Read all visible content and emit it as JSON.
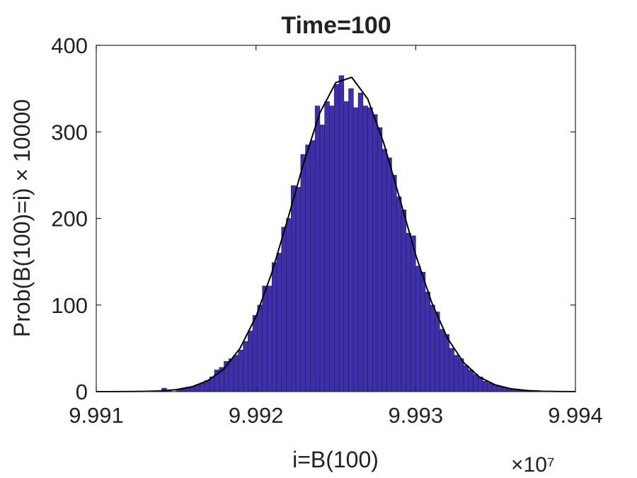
{
  "chart_data": {
    "type": "histogram",
    "title": "Time=100",
    "xlabel": "i=B(100)",
    "ylabel": "Prob(B(100)=i) × 10000",
    "x_multiplier": "×10⁷",
    "bins": [
      9.99141,
      9.99144,
      9.99147,
      9.9915,
      9.99153,
      9.99156,
      9.99159,
      9.99162,
      9.99165,
      9.99168,
      9.99171,
      9.99174,
      9.99177,
      9.9918,
      9.99183,
      9.99186,
      9.99189,
      9.99192,
      9.99195,
      9.99198,
      9.99201,
      9.99204,
      9.99207,
      9.9921,
      9.99213,
      9.99216,
      9.99219,
      9.99222,
      9.99225,
      9.99228,
      9.99231,
      9.99234,
      9.99237,
      9.9924,
      9.99243,
      9.99246,
      9.99249,
      9.99252,
      9.99255,
      9.99258,
      9.99261,
      9.99264,
      9.99267,
      9.9927,
      9.99273,
      9.99276,
      9.99279,
      9.99282,
      9.99285,
      9.99288,
      9.99291,
      9.99294,
      9.99297,
      9.993,
      9.99303,
      9.99306,
      9.99309,
      9.99312,
      9.99315,
      9.99318,
      9.99321,
      9.99324,
      9.99327,
      9.9933,
      9.99333,
      9.99336,
      9.99339,
      9.99342,
      9.99345,
      9.99348,
      9.99351,
      9.99354,
      9.99357,
      9.9936,
      9.99363,
      9.99366,
      9.99369,
      9.99372
    ],
    "values": [
      4,
      1,
      0,
      2,
      3,
      5,
      6,
      8,
      10,
      13,
      17,
      25,
      28,
      35,
      38,
      42,
      48,
      58,
      70,
      88,
      100,
      122,
      122,
      149,
      160,
      190,
      200,
      238,
      236,
      274,
      285,
      290,
      330,
      308,
      335,
      330,
      355,
      365,
      335,
      350,
      328,
      345,
      330,
      328,
      320,
      305,
      280,
      270,
      250,
      225,
      210,
      183,
      180,
      145,
      138,
      115,
      100,
      92,
      72,
      66,
      50,
      42,
      38,
      30,
      25,
      20,
      17,
      12,
      10,
      8,
      6,
      5,
      3,
      2,
      2,
      1,
      1
    ],
    "color": "#3f30a8",
    "edgecolor": "#231a6e",
    "curve": {
      "x": [
        9.991,
        9.9911,
        9.9912,
        9.9913,
        9.9914,
        9.9915,
        9.9916,
        9.9917,
        9.9918,
        9.9919,
        9.992,
        9.9921,
        9.9922,
        9.9923,
        9.9924,
        9.9925,
        9.9926,
        9.9927,
        9.9928,
        9.9929,
        9.993,
        9.9931,
        9.9932,
        9.9933,
        9.9934,
        9.9935,
        9.9936,
        9.9937,
        9.9938,
        9.9939,
        9.994
      ],
      "values": [
        0,
        0.02,
        0.09,
        0.28,
        0.83,
        2.26,
        5.6,
        12.8,
        26.3,
        50,
        86.6,
        137.7,
        200,
        265,
        322,
        357,
        363,
        338,
        287,
        223,
        158,
        103,
        61.4,
        33.5,
        16.7,
        7.6,
        3.17,
        1.21,
        0.42,
        0.13,
        0.04
      ],
      "color": "#000000"
    },
    "xlim": [
      9.991,
      9.994
    ],
    "xticks": [
      9.991,
      9.992,
      9.993,
      9.994
    ],
    "ylim": [
      0,
      400
    ],
    "yticks": [
      0,
      100,
      200,
      300,
      400
    ]
  }
}
